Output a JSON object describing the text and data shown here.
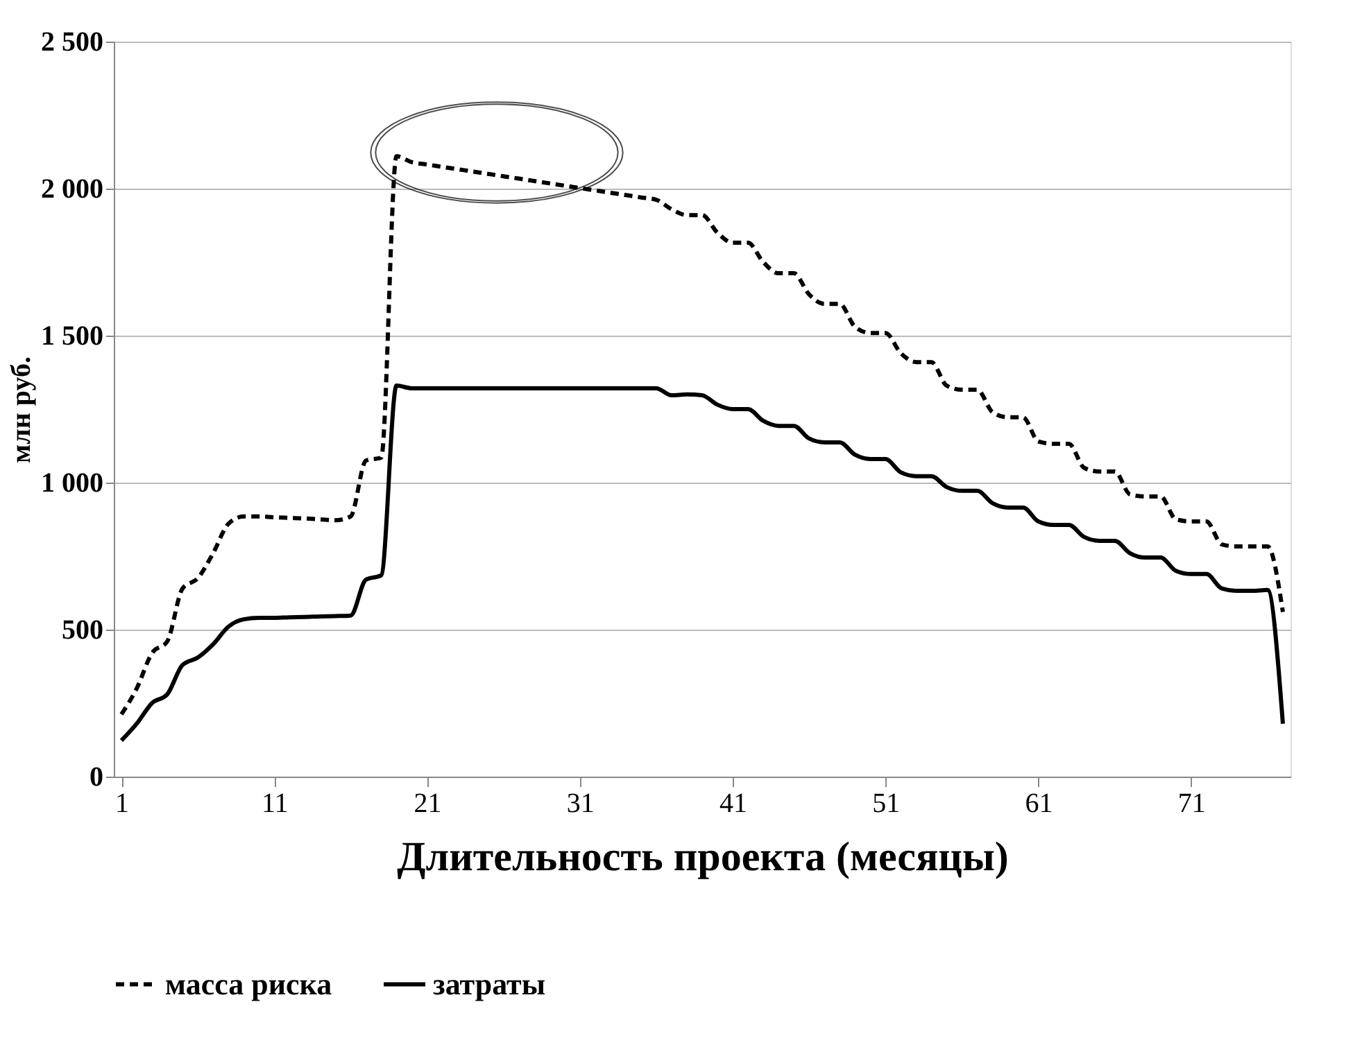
{
  "chart_data": {
    "type": "line",
    "xlabel": "Длительность проекта (месяцы)",
    "ylabel": "млн руб.",
    "x": [
      1,
      2,
      3,
      4,
      5,
      6,
      7,
      8,
      9,
      10,
      11,
      12,
      13,
      14,
      15,
      16,
      17,
      18,
      19,
      20,
      21,
      22,
      23,
      24,
      25,
      26,
      27,
      28,
      29,
      30,
      31,
      32,
      33,
      34,
      35,
      36,
      37,
      38,
      39,
      40,
      41,
      42,
      43,
      44,
      45,
      46,
      47,
      48,
      49,
      50,
      51,
      52,
      53,
      54,
      55,
      56,
      57,
      58,
      59,
      60,
      61,
      62,
      63,
      64,
      65,
      66,
      67,
      68,
      69,
      70,
      71,
      72,
      73,
      74,
      75,
      76,
      77
    ],
    "series": [
      {
        "name": "масса риска",
        "color": "#000000",
        "line_style": "dashed",
        "values": [
          212,
          300,
          420,
          460,
          640,
          675,
          760,
          860,
          885,
          885,
          882,
          880,
          878,
          875,
          872,
          885,
          1075,
          1085,
          2110,
          2090,
          2082,
          2074,
          2066,
          2058,
          2050,
          2042,
          2034,
          2026,
          2018,
          2010,
          2002,
          1994,
          1986,
          1978,
          1970,
          1962,
          1930,
          1910,
          1910,
          1850,
          1816,
          1816,
          1750,
          1712,
          1712,
          1640,
          1608,
          1608,
          1530,
          1509,
          1509,
          1440,
          1410,
          1410,
          1330,
          1316,
          1316,
          1240,
          1222,
          1222,
          1140,
          1132,
          1132,
          1050,
          1038,
          1038,
          960,
          953,
          953,
          875,
          868,
          868,
          790,
          783,
          783,
          783,
          560
        ]
      },
      {
        "name": "затраты",
        "color": "#000000",
        "line_style": "solid",
        "values": [
          123,
          180,
          250,
          280,
          380,
          405,
          450,
          510,
          535,
          540,
          540,
          542,
          543,
          545,
          546,
          548,
          670,
          685,
          1330,
          1321,
          1321,
          1321,
          1321,
          1321,
          1321,
          1321,
          1321,
          1321,
          1321,
          1321,
          1321,
          1321,
          1321,
          1321,
          1321,
          1321,
          1297,
          1300,
          1297,
          1265,
          1250,
          1250,
          1210,
          1193,
          1193,
          1150,
          1137,
          1137,
          1095,
          1080,
          1080,
          1035,
          1022,
          1022,
          985,
          972,
          972,
          930,
          915,
          915,
          868,
          856,
          856,
          815,
          802,
          802,
          760,
          745,
          745,
          700,
          689,
          689,
          640,
          632,
          632,
          635,
          180
        ]
      }
    ],
    "xlim": [
      0.5,
      77.5
    ],
    "xticks": [
      1,
      11,
      21,
      31,
      41,
      51,
      61,
      71
    ],
    "ylim": [
      0,
      2500
    ],
    "yticks": [
      {
        "value": 0,
        "label": "0"
      },
      {
        "value": 500,
        "label": "500"
      },
      {
        "value": 1000,
        "label": "1 000"
      },
      {
        "value": 1500,
        "label": "1 500"
      },
      {
        "value": 2000,
        "label": "2 000"
      },
      {
        "value": 2500,
        "label": "2 500"
      }
    ],
    "grid": "y",
    "legend": "bottom",
    "marker": "none"
  }
}
